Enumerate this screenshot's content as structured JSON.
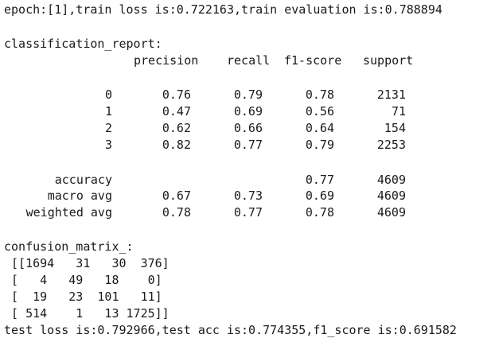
{
  "epoch_line": "epoch:[1],train loss is:0.722163,train evaluation is:0.788894",
  "report": {
    "title": "classification_report:",
    "headers": [
      "precision",
      "recall",
      "f1-score",
      "support"
    ],
    "rows": [
      {
        "label": "0",
        "precision": "0.76",
        "recall": "0.79",
        "f1": "0.78",
        "support": "2131"
      },
      {
        "label": "1",
        "precision": "0.47",
        "recall": "0.69",
        "f1": "0.56",
        "support": "71"
      },
      {
        "label": "2",
        "precision": "0.62",
        "recall": "0.66",
        "f1": "0.64",
        "support": "154"
      },
      {
        "label": "3",
        "precision": "0.82",
        "recall": "0.77",
        "f1": "0.79",
        "support": "2253"
      }
    ],
    "summary": [
      {
        "label": "accuracy",
        "precision": "",
        "recall": "",
        "f1": "0.77",
        "support": "4609"
      },
      {
        "label": "macro avg",
        "precision": "0.67",
        "recall": "0.73",
        "f1": "0.69",
        "support": "4609"
      },
      {
        "label": "weighted avg",
        "precision": "0.78",
        "recall": "0.77",
        "f1": "0.78",
        "support": "4609"
      }
    ]
  },
  "confusion": {
    "title": "confusion_matrix_:",
    "lines": [
      " [[1694   31   30  376]",
      " [   4   49   18    0]",
      " [  19   23  101   11]",
      " [ 514    1   13 1725]]"
    ]
  },
  "test_line": "test loss is:0.792966,test acc is:0.774355,f1_score is:0.691582"
}
